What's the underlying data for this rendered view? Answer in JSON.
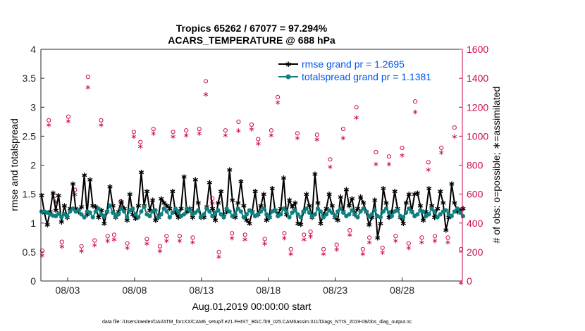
{
  "chart_data": {
    "type": "line",
    "title": [
      "Tropics 65262 / 67077 = 97.294%",
      "ACARS_TEMPERATURE @ 688 hPa"
    ],
    "xlabel": "Aug.01,2019 00:00:00 start",
    "ylabel_left": "rmse and totalspread",
    "ylabel_right": "# of obs: o=possible; ∗=assimilated",
    "xlim": [
      1,
      32.5
    ],
    "ylim_left": [
      0,
      4
    ],
    "ylim_right": [
      0,
      1600
    ],
    "x_ticks": [
      {
        "x": 3,
        "label": "08/03"
      },
      {
        "x": 8,
        "label": "08/08"
      },
      {
        "x": 13,
        "label": "08/13"
      },
      {
        "x": 18,
        "label": "08/18"
      },
      {
        "x": 23,
        "label": "08/23"
      },
      {
        "x": 28,
        "label": "08/28"
      }
    ],
    "y_ticks_left": [
      "0",
      "0.5",
      "1",
      "1.5",
      "2",
      "2.5",
      "3",
      "3.5",
      "4"
    ],
    "y_ticks_right": [
      "0",
      "200",
      "400",
      "600",
      "800",
      "1000",
      "1200",
      "1400",
      "1600"
    ],
    "colors": {
      "rmse": "#000000",
      "spread": "#0f8080",
      "obs": "#cc0a52",
      "legend_text": "#0055ee",
      "axis": "#262626"
    },
    "legend": {
      "placement": "top-right"
    },
    "series": [
      {
        "name": "rmse grand pr = 1.2695",
        "axis": "left",
        "values": [
          1.48,
          1.18,
          0.97,
          1.2,
          1.52,
          1.22,
          1.48,
          1.02,
          1.3,
          1.1,
          1.25,
          1.68,
          1.25,
          1.2,
          1.28,
          1.83,
          1.15,
          1.75,
          1.3,
          1.28,
          1.1,
          1.22,
          1.0,
          1.2,
          1.63,
          1.3,
          1.1,
          1.2,
          1.37,
          1.25,
          1.05,
          1.5,
          1.15,
          1.08,
          1.3,
          1.88,
          1.3,
          1.55,
          1.22,
          1.4,
          1.05,
          1.1,
          1.42,
          1.35,
          1.3,
          1.25,
          1.55,
          1.18,
          1.1,
          1.25,
          1.8,
          1.2,
          1.25,
          1.1,
          1.75,
          1.35,
          1.1,
          1.1,
          1.28,
          1.7,
          1.25,
          1.05,
          1.35,
          1.55,
          1.15,
          1.2,
          1.92,
          1.4,
          1.1,
          1.35,
          1.72,
          1.3,
          1.05,
          1.0,
          1.2,
          1.55,
          1.15,
          1.3,
          1.5,
          1.05,
          1.1,
          1.6,
          1.22,
          1.15,
          1.25,
          1.78,
          1.15,
          1.4,
          1.28,
          1.35,
          1.0,
          0.98,
          1.2,
          1.5,
          1.3,
          1.1,
          1.85,
          1.35,
          1.0,
          1.15,
          1.25,
          1.5,
          1.3,
          1.1,
          1.05,
          1.45,
          1.2,
          1.58,
          1.3,
          1.42,
          1.15,
          1.25,
          1.45,
          1.35,
          1.2,
          0.97,
          1.1,
          1.4,
          0.75,
          1.0,
          1.6,
          1.35,
          1.1,
          1.2,
          1.55,
          1.25,
          1.1,
          1.0,
          1.35,
          1.5,
          1.2,
          1.5,
          1.52,
          1.3,
          1.05,
          1.2,
          1.6,
          1.3,
          1.1,
          1.25,
          1.55,
          1.35,
          0.88,
          1.1,
          1.68,
          1.35,
          1.2,
          1.22,
          1.25
        ]
      },
      {
        "name": "totalspread grand pr = 1.1381",
        "axis": "left",
        "values": [
          1.2,
          1.2,
          1.18,
          1.15,
          1.13,
          1.12,
          1.16,
          1.1,
          1.15,
          1.12,
          1.2,
          1.25,
          1.2,
          1.22,
          1.15,
          1.1,
          1.2,
          1.18,
          1.1,
          1.2,
          1.25,
          1.15,
          1.12,
          1.2,
          1.3,
          1.18,
          1.12,
          1.15,
          1.25,
          1.2,
          1.1,
          1.22,
          1.25,
          1.15,
          1.1,
          1.2,
          1.28,
          1.15,
          1.12,
          1.2,
          1.22,
          1.1,
          1.15,
          1.25,
          1.2,
          1.1,
          1.18,
          1.25,
          1.2,
          1.12,
          1.15,
          1.25,
          1.22,
          1.15,
          1.18,
          1.22,
          1.1,
          1.15,
          1.25,
          1.2,
          1.12,
          1.18,
          1.22,
          1.15,
          1.1,
          1.25,
          1.2,
          1.12,
          1.15,
          1.25,
          1.2,
          1.1,
          1.15,
          1.22,
          1.18,
          1.12,
          1.15,
          1.2,
          1.25,
          1.15,
          1.1,
          1.2,
          1.22,
          1.12,
          1.15,
          1.25,
          1.2,
          1.1,
          1.18,
          1.22,
          1.15,
          1.1,
          1.2,
          1.25,
          1.18,
          1.12,
          1.15,
          1.25,
          1.2,
          1.1,
          1.15,
          1.22,
          1.18,
          1.12,
          1.2,
          1.25,
          1.18,
          1.12,
          1.15,
          1.22,
          1.15,
          1.1,
          1.2,
          1.25,
          1.2,
          1.12,
          1.15,
          1.22,
          1.12,
          1.1,
          1.2,
          1.25,
          1.18,
          1.12,
          1.2,
          1.22,
          1.12,
          1.1,
          1.18,
          1.25,
          1.2,
          1.12,
          1.15,
          1.22,
          1.2,
          1.12,
          1.15,
          1.25,
          1.2,
          1.1,
          1.15,
          1.2,
          1.22,
          1.15,
          1.12,
          1.2,
          1.25,
          1.18,
          1.12
        ]
      }
    ],
    "obs_possible": [
      200,
      1100,
      580,
      260,
      1125,
      620,
      230,
      1400,
      270,
      1100,
      300,
      310,
      540,
      250,
      1020,
      950,
      280,
      1040,
      230,
      300,
      1020,
      300,
      1030,
      290,
      1040,
      1370,
      560,
      190,
      1030,
      320,
      1090,
      310,
      1070,
      970,
      280,
      1030,
      1260,
      320,
      210,
      1010,
      310,
      330,
      1000,
      210,
      830,
      240,
      1040,
      340,
      1190,
      210,
      290,
      880,
      220,
      850,
      300,
      910,
      250,
      1230,
      290,
      810,
      300,
      910,
      290,
      1050,
      210
    ],
    "obs_assimilated": [
      190,
      1090,
      560,
      250,
      1115,
      610,
      220,
      1350,
      260,
      1090,
      290,
      300,
      530,
      240,
      1010,
      940,
      270,
      1030,
      220,
      290,
      1010,
      290,
      1020,
      280,
      1030,
      1300,
      550,
      180,
      1020,
      310,
      1050,
      300,
      1060,
      960,
      270,
      1020,
      1245,
      310,
      200,
      1000,
      300,
      320,
      990,
      200,
      800,
      230,
      1000,
      330,
      1140,
      200,
      280,
      820,
      210,
      820,
      290,
      880,
      240,
      1180,
      280,
      780,
      290,
      900,
      280,
      1010,
      0
    ]
  },
  "footer": "data file: /Users/raeder/DAI/ATM_forcXX/CAM6_setup/f.e21.FHIST_BGC.f09_025.CAM6assim.011/Diags_NTrS_2019-08/obs_diag_output.nc"
}
